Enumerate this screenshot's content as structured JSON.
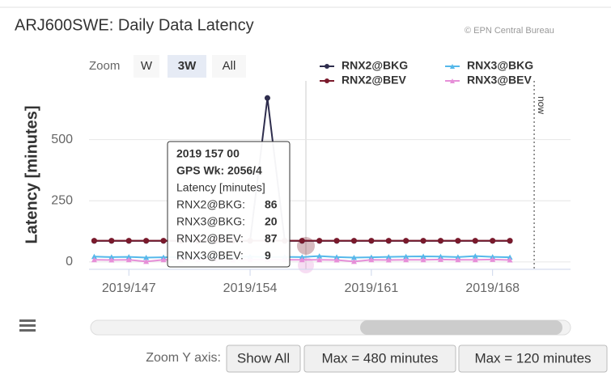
{
  "chart_data": {
    "type": "line",
    "title": "ARJ600SWE: Daily Data Latency",
    "credits": "© EPN Central Bureau",
    "zoom": {
      "label": "Zoom",
      "buttons": [
        "W",
        "3W",
        "All"
      ],
      "selected": "3W"
    },
    "y_axis_label": "Latency [minutes]",
    "x": [
      145,
      146,
      147,
      148,
      149,
      150,
      151,
      152,
      153,
      154,
      155,
      156,
      157,
      158,
      159,
      160,
      161,
      162,
      163,
      164,
      165,
      166,
      167,
      168,
      169
    ],
    "xlim": [
      144.7,
      172.5
    ],
    "xticks": [
      {
        "value": 147,
        "label": "2019/147"
      },
      {
        "value": 154,
        "label": "2019/154"
      },
      {
        "value": 161,
        "label": "2019/161"
      },
      {
        "value": 168,
        "label": "2019/168"
      }
    ],
    "ylim": [
      -30,
      740
    ],
    "yticks": [
      0,
      250,
      500
    ],
    "grid": true,
    "legend": "top-right",
    "series": [
      {
        "name": "RNX2@BKG",
        "color": "#2e2d4d",
        "marker": "circle",
        "values": [
          86,
          86,
          86,
          86,
          86,
          86,
          86,
          86,
          86,
          86,
          670,
          86,
          86,
          86,
          86,
          86,
          86,
          86,
          86,
          86,
          86,
          86,
          86,
          86,
          86
        ]
      },
      {
        "name": "RNX3@BKG",
        "color": "#55b8ea",
        "marker": "triangle",
        "values": [
          22,
          20,
          21,
          18,
          19,
          20,
          21,
          19,
          20,
          22,
          20,
          21,
          20,
          24,
          20,
          18,
          19,
          21,
          22,
          23,
          22,
          20,
          24,
          21,
          19
        ]
      },
      {
        "name": "RNX2@BEV",
        "color": "#7a1a2c",
        "marker": "circle",
        "values": [
          87,
          87,
          87,
          87,
          87,
          87,
          87,
          87,
          87,
          87,
          87,
          87,
          87,
          87,
          87,
          87,
          87,
          87,
          87,
          87,
          87,
          87,
          87,
          87,
          87
        ]
      },
      {
        "name": "RNX3@BEV",
        "color": "#e68fd8",
        "marker": "triangle",
        "values": [
          9,
          8,
          9,
          2,
          9,
          8,
          9,
          9,
          8,
          9,
          9,
          9,
          9,
          9,
          8,
          2,
          9,
          8,
          9,
          9,
          10,
          9,
          9,
          10,
          8
        ]
      }
    ],
    "now_line": {
      "x": 170.4,
      "label": "now"
    },
    "tooltip": {
      "title": "2019 157 00",
      "week": "GPS Wk: 2056/4",
      "header": "Latency [minutes]",
      "rows": [
        {
          "label": "RNX2@BKG:",
          "value": 86
        },
        {
          "label": "RNX3@BKG:",
          "value": 20
        },
        {
          "label": "RNX2@BEV:",
          "value": 87
        },
        {
          "label": "RNX3@BEV:",
          "value": 9
        }
      ]
    },
    "y_zoom": {
      "label": "Zoom Y axis:",
      "buttons": [
        "Show All",
        "Max = 480 minutes",
        "Max = 120 minutes"
      ]
    }
  }
}
